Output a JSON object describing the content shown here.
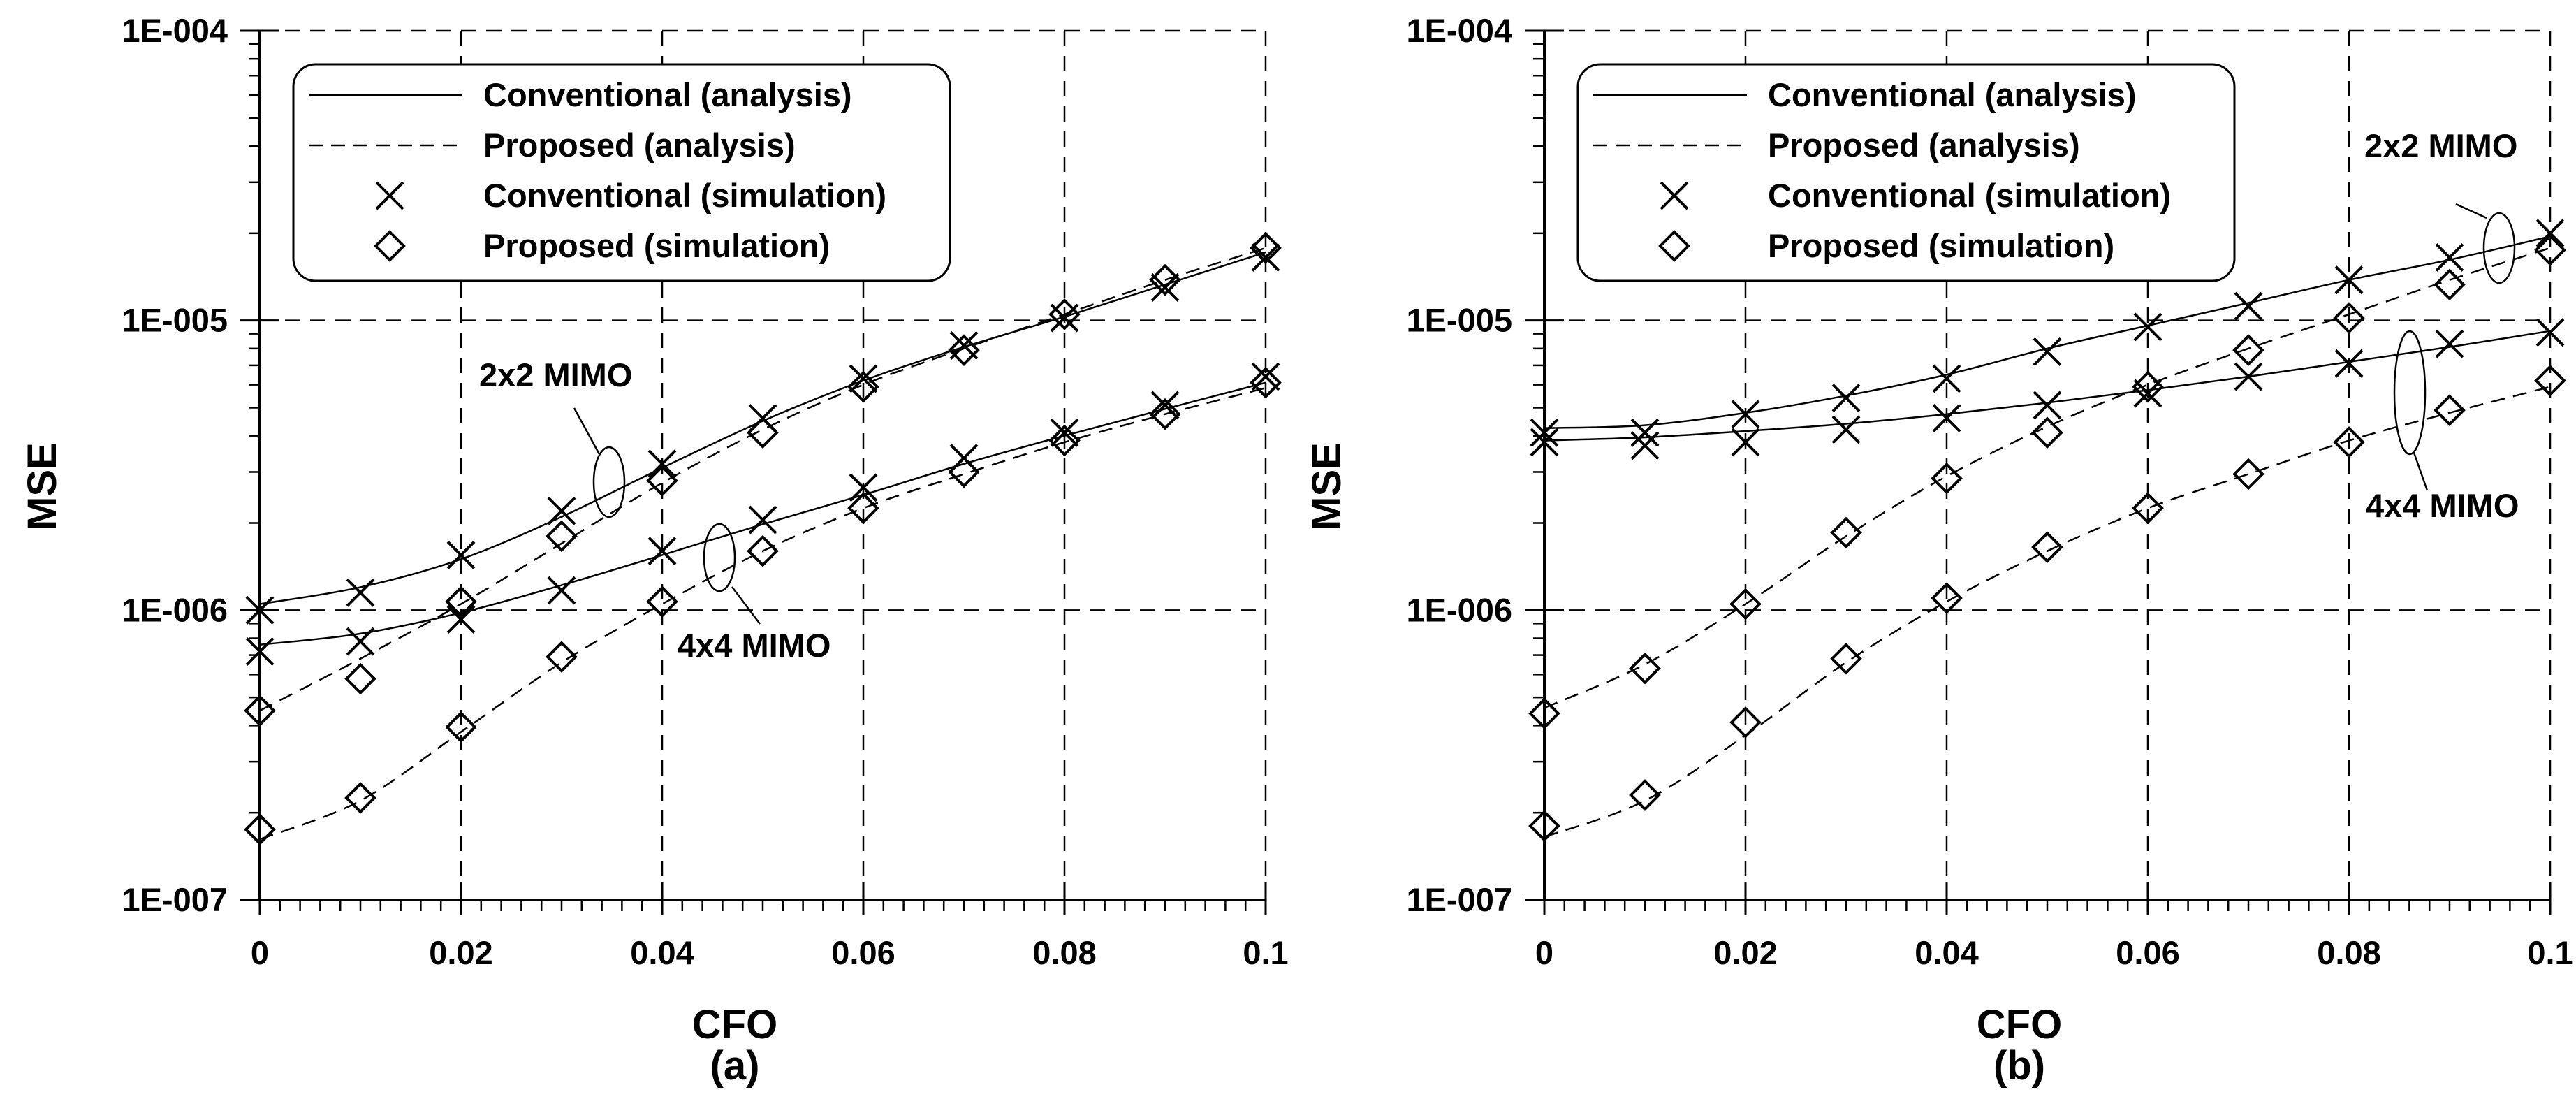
{
  "chart_data": [
    {
      "type": "line",
      "panel_label": "(a)",
      "xlabel": "CFO",
      "ylabel": "MSE",
      "xlim": [
        0,
        0.1
      ],
      "ylim": [
        1e-07,
        0.0001
      ],
      "yscale": "log",
      "x_ticks": [
        "0",
        "0.02",
        "0.04",
        "0.06",
        "0.08",
        "0.1"
      ],
      "y_ticks": [
        "1E-007",
        "1E-006",
        "1E-005",
        "1E-004"
      ],
      "grid": true,
      "legend_position": "top-left",
      "legend": [
        {
          "label": "Conventional (analysis)",
          "style": "solid"
        },
        {
          "label": "Proposed (analysis)",
          "style": "dashed"
        },
        {
          "label": "Conventional (simulation)",
          "style": "x"
        },
        {
          "label": "Proposed (simulation)",
          "style": "diamond"
        }
      ],
      "x": [
        0,
        0.01,
        0.02,
        0.03,
        0.04,
        0.05,
        0.06,
        0.07,
        0.08,
        0.09,
        0.1
      ],
      "series": [
        {
          "name": "Conventional (analysis) 2x2 MIMO",
          "style": "solid",
          "values": [
            1.05e-06,
            1.2e-06,
            1.5e-06,
            2.1e-06,
            3.1e-06,
            4.5e-06,
            6.2e-06,
            8.1e-06,
            1.03e-05,
            1.33e-05,
            1.72e-05
          ]
        },
        {
          "name": "Proposed (analysis) 2x2 MIMO",
          "style": "dashed",
          "values": [
            4.5e-07,
            6.8e-07,
            1.05e-06,
            1.7e-06,
            2.75e-06,
            4.2e-06,
            6e-06,
            8e-06,
            1.05e-05,
            1.38e-05,
            1.78e-05
          ]
        },
        {
          "name": "Conventional (simulation) 2x2 MIMO",
          "style": "x",
          "values": [
            1e-06,
            1.15e-06,
            1.55e-06,
            2.2e-06,
            3.2e-06,
            4.6e-06,
            6.3e-06,
            8.2e-06,
            1.02e-05,
            1.3e-05,
            1.65e-05
          ]
        },
        {
          "name": "Proposed (simulation) 2x2 MIMO",
          "style": "diamond",
          "values": [
            4.5e-07,
            5.8e-07,
            1.07e-06,
            1.8e-06,
            2.8e-06,
            4.1e-06,
            5.9e-06,
            7.9e-06,
            1.05e-05,
            1.38e-05,
            1.78e-05
          ]
        },
        {
          "name": "Conventional (analysis) 4x4 MIMO",
          "style": "solid",
          "values": [
            7.6e-07,
            8.3e-07,
            9.8e-07,
            1.22e-06,
            1.55e-06,
            1.98e-06,
            2.5e-06,
            3.2e-06,
            4e-06,
            4.95e-06,
            6.1e-06
          ]
        },
        {
          "name": "Proposed (analysis) 4x4 MIMO",
          "style": "dashed",
          "values": [
            1.62e-07,
            2.2e-07,
            3.8e-07,
            6.6e-07,
            1.05e-06,
            1.6e-06,
            2.25e-06,
            2.95e-06,
            3.8e-06,
            4.75e-06,
            5.85e-06
          ]
        },
        {
          "name": "Conventional (simulation) 4x4 MIMO",
          "style": "x",
          "values": [
            7.2e-07,
            7.8e-07,
            9.3e-07,
            1.17e-06,
            1.6e-06,
            2.05e-06,
            2.65e-06,
            3.35e-06,
            4.1e-06,
            5.1e-06,
            6.4e-06
          ]
        },
        {
          "name": "Proposed (simulation) 4x4 MIMO",
          "style": "diamond",
          "values": [
            1.75e-07,
            2.25e-07,
            3.95e-07,
            6.9e-07,
            1.07e-06,
            1.6e-06,
            2.25e-06,
            3e-06,
            3.85e-06,
            4.75e-06,
            6.1e-06
          ]
        }
      ],
      "annotations": [
        {
          "text": "2x2 MIMO",
          "target": "2x2 MIMO curves near CFO 0.035"
        },
        {
          "text": "4x4 MIMO",
          "target": "4x4 MIMO curves near CFO 0.046"
        }
      ]
    },
    {
      "type": "line",
      "panel_label": "(b)",
      "xlabel": "CFO",
      "ylabel": "MSE",
      "xlim": [
        0,
        0.1
      ],
      "ylim": [
        1e-07,
        0.0001
      ],
      "yscale": "log",
      "x_ticks": [
        "0",
        "0.02",
        "0.04",
        "0.06",
        "0.08",
        "0.1"
      ],
      "y_ticks": [
        "1E-007",
        "1E-006",
        "1E-005",
        "1E-004"
      ],
      "grid": true,
      "legend_position": "top-left",
      "legend": [
        {
          "label": "Conventional (analysis)",
          "style": "solid"
        },
        {
          "label": "Proposed (analysis)",
          "style": "dashed"
        },
        {
          "label": "Conventional (simulation)",
          "style": "x"
        },
        {
          "label": "Proposed (simulation)",
          "style": "diamond"
        }
      ],
      "x": [
        0,
        0.01,
        0.02,
        0.03,
        0.04,
        0.05,
        0.06,
        0.07,
        0.08,
        0.09,
        0.1
      ],
      "series": [
        {
          "name": "Conventional (analysis) 2x2 MIMO",
          "style": "solid",
          "values": [
            4.25e-06,
            4.35e-06,
            4.8e-06,
            5.5e-06,
            6.5e-06,
            8e-06,
            9.6e-06,
            1.15e-05,
            1.38e-05,
            1.62e-05,
            1.95e-05
          ]
        },
        {
          "name": "Proposed (analysis) 2x2 MIMO",
          "style": "dashed",
          "values": [
            4.6e-07,
            6.5e-07,
            1.05e-06,
            1.8e-06,
            2.9e-06,
            4.3e-06,
            6e-06,
            8e-06,
            1.05e-05,
            1.38e-05,
            1.78e-05
          ]
        },
        {
          "name": "Conventional (simulation) 2x2 MIMO",
          "style": "x",
          "values": [
            4.1e-06,
            4.1e-06,
            4.75e-06,
            5.4e-06,
            6.3e-06,
            7.8e-06,
            9.5e-06,
            1.12e-05,
            1.38e-05,
            1.65e-05,
            2e-05
          ]
        },
        {
          "name": "Proposed (simulation) 2x2 MIMO",
          "style": "diamond",
          "values": [
            4.4e-07,
            6.3e-07,
            1.05e-06,
            1.85e-06,
            2.85e-06,
            4.1e-06,
            5.9e-06,
            7.9e-06,
            1.02e-05,
            1.33e-05,
            1.75e-05
          ]
        },
        {
          "name": "Conventional (analysis) 4x4 MIMO",
          "style": "solid",
          "values": [
            3.85e-06,
            3.95e-06,
            4.15e-06,
            4.4e-06,
            4.75e-06,
            5.2e-06,
            5.75e-06,
            6.4e-06,
            7.2e-06,
            8.1e-06,
            9.2e-06
          ]
        },
        {
          "name": "Proposed (analysis) 4x4 MIMO",
          "style": "dashed",
          "values": [
            1.65e-07,
            2.2e-07,
            3.7e-07,
            6.6e-07,
            1.07e-06,
            1.6e-06,
            2.25e-06,
            2.95e-06,
            3.85e-06,
            4.8e-06,
            5.9e-06
          ]
        },
        {
          "name": "Conventional (simulation) 4x4 MIMO",
          "style": "x",
          "values": [
            3.8e-06,
            3.7e-06,
            3.8e-06,
            4.2e-06,
            4.6e-06,
            5.1e-06,
            5.6e-06,
            6.4e-06,
            7.1e-06,
            8.3e-06,
            9.1e-06
          ]
        },
        {
          "name": "Proposed (simulation) 4x4 MIMO",
          "style": "diamond",
          "values": [
            1.8e-07,
            2.3e-07,
            4.1e-07,
            6.8e-07,
            1.1e-06,
            1.65e-06,
            2.25e-06,
            2.95e-06,
            3.8e-06,
            4.9e-06,
            6.2e-06
          ]
        }
      ],
      "annotations": [
        {
          "text": "2x2 MIMO",
          "target": "2x2 MIMO curves near CFO 0.095"
        },
        {
          "text": "4x4 MIMO",
          "target": "4x4 MIMO curves near CFO 0.086"
        }
      ]
    }
  ]
}
